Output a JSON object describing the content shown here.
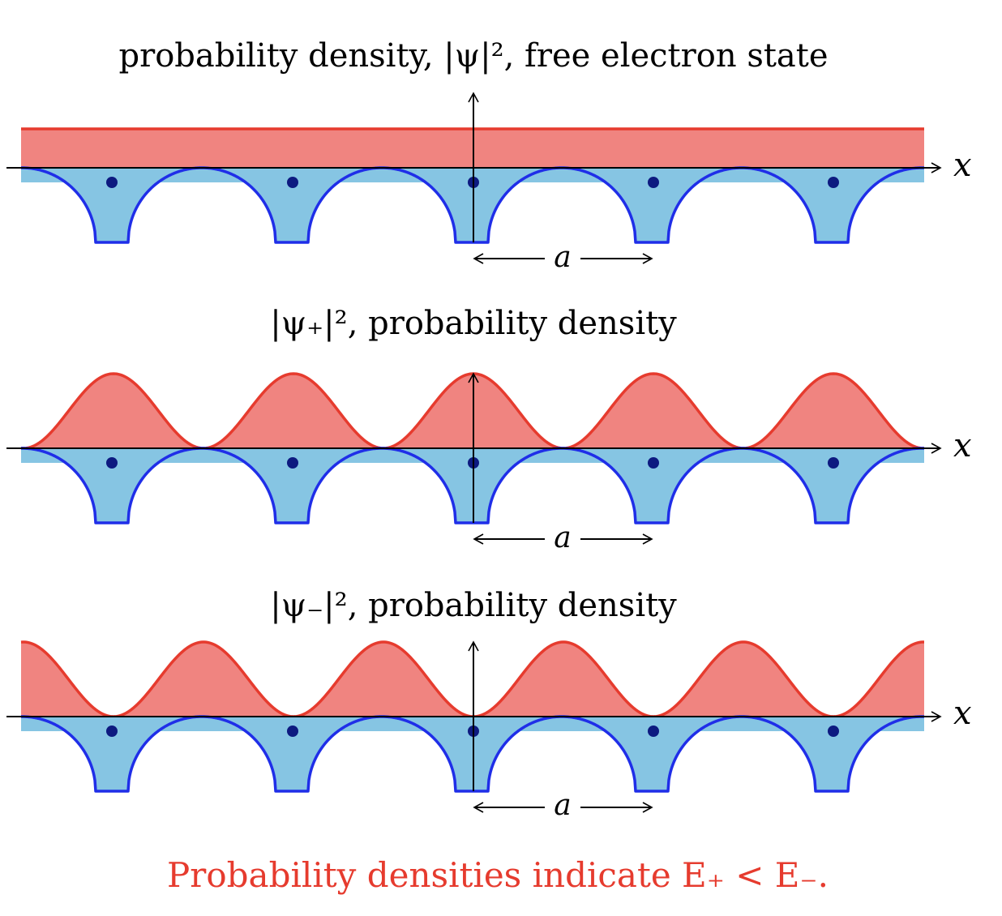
{
  "colors": {
    "density_line": "#e63b2e",
    "density_fill": "#f08480",
    "potential_line": "#1f2ee8",
    "potential_fill": "#86c5e3",
    "ion": "#0d1a80",
    "axis": "#000000",
    "caption": "#e63b2e"
  },
  "panels": [
    {
      "title": "probability density, |ψ|², free electron state",
      "x_label": "x",
      "lattice_label": "a",
      "density": "uniform"
    },
    {
      "title": "|ψ₊|², probability density",
      "x_label": "x",
      "lattice_label": "a",
      "density": "cos-squared"
    },
    {
      "title": "|ψ₋|², probability density",
      "x_label": "x",
      "lattice_label": "a",
      "density": "sin-squared"
    }
  ],
  "caption": "Probability densities indicate E₊ < E₋."
}
